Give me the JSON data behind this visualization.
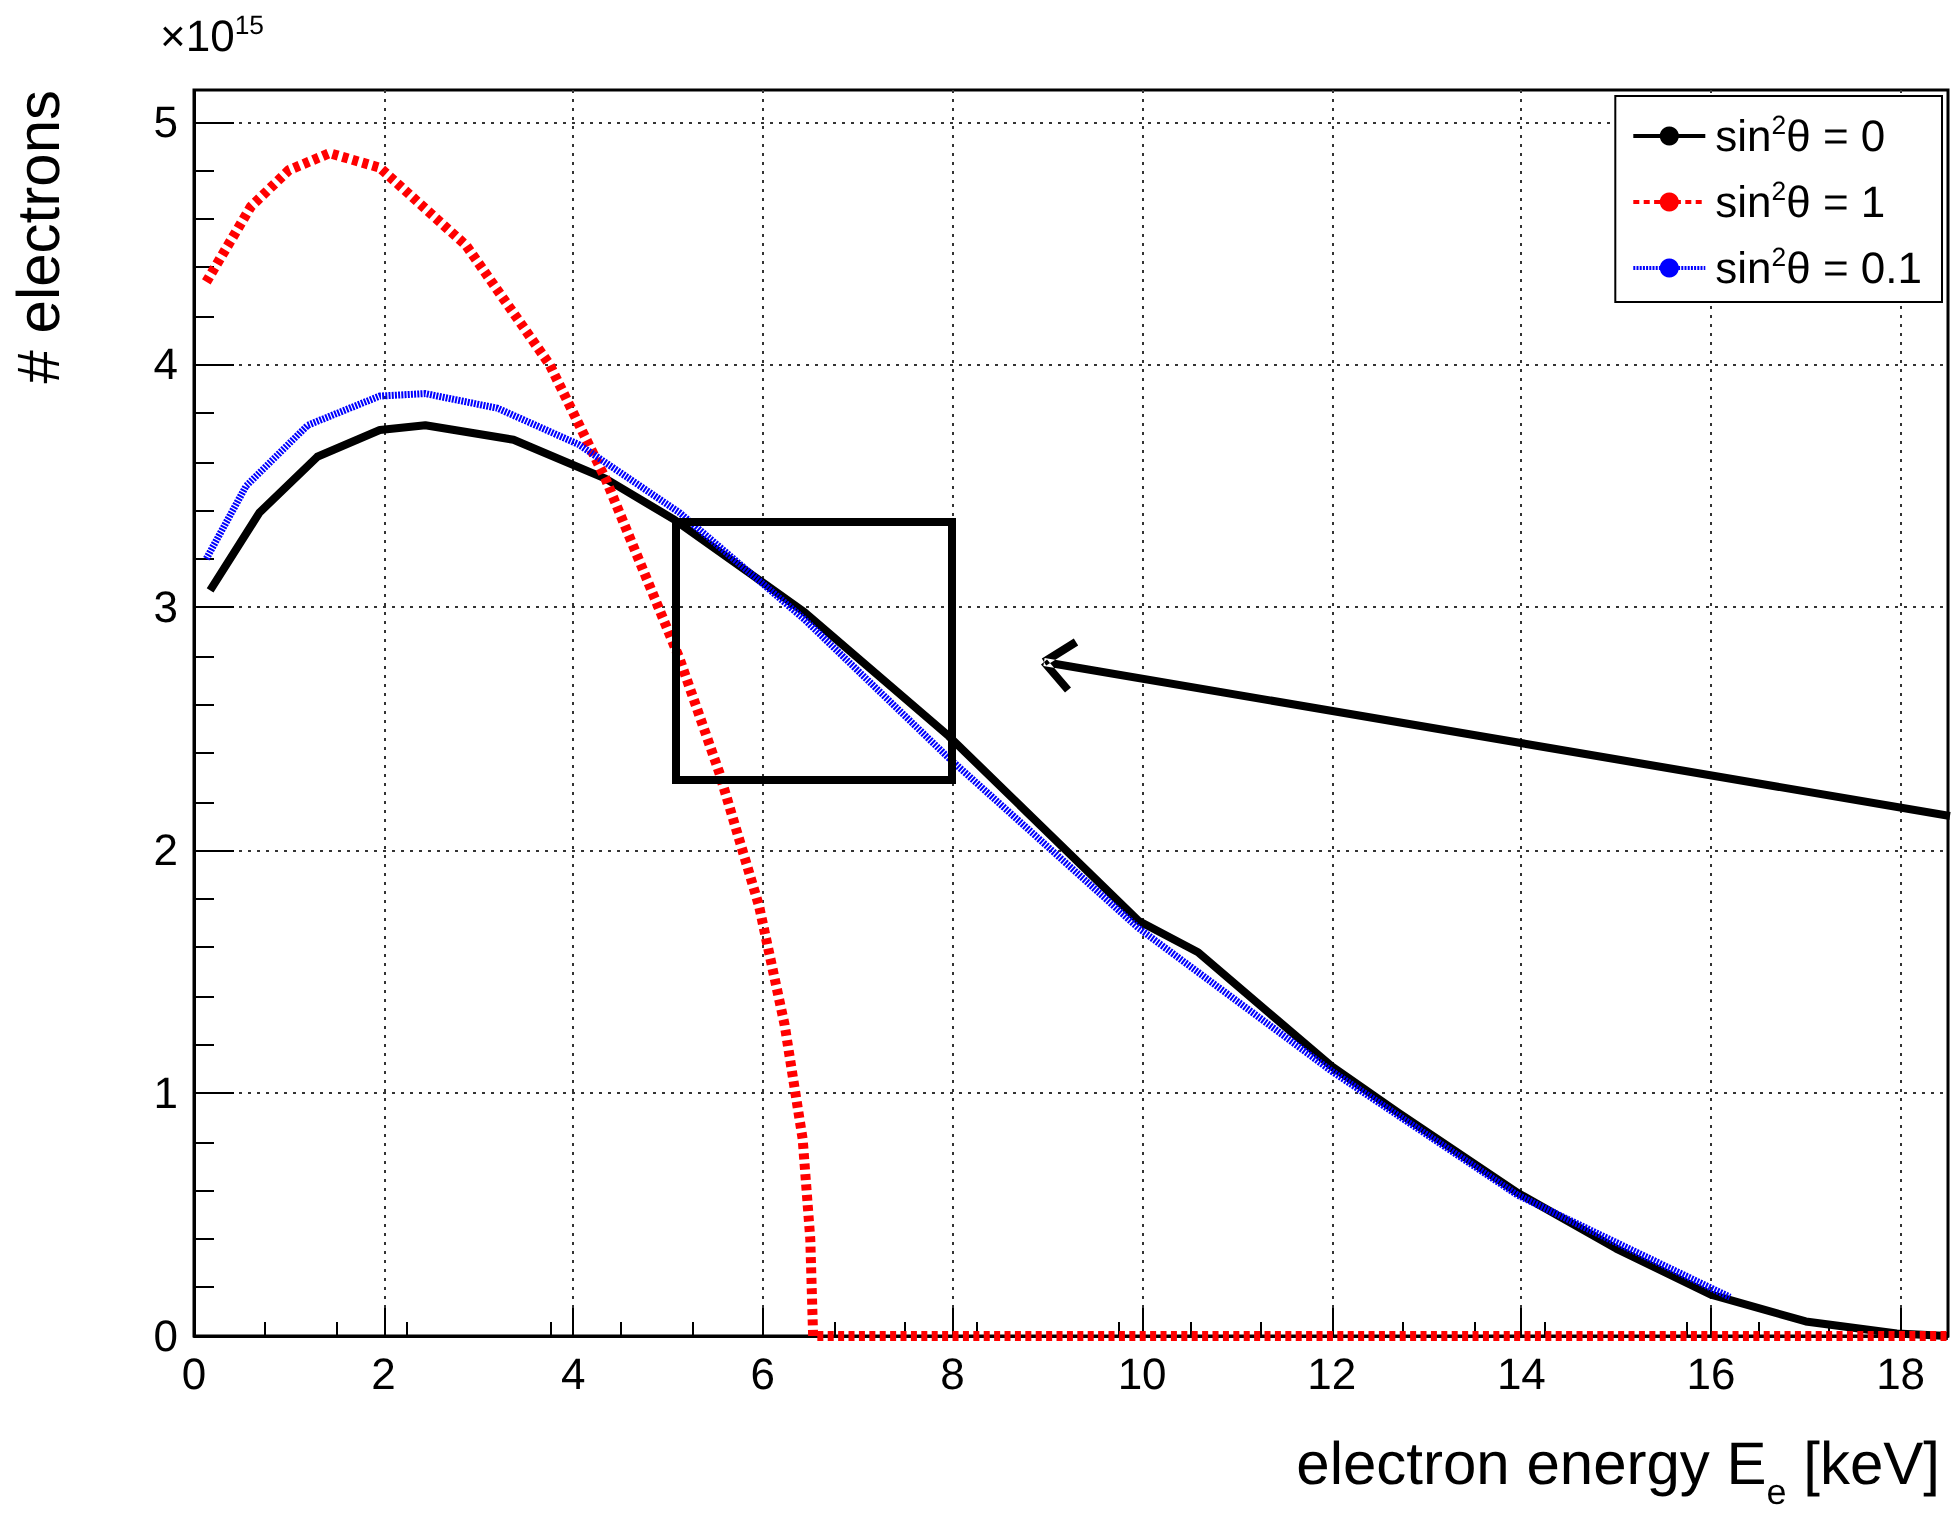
{
  "chart_data": {
    "type": "line",
    "xlabel": "electron energy E$_{e}$ [keV]",
    "ylabel": "# electrons",
    "annotations": [
      "×10$^{15}$"
    ],
    "xlim": [
      0,
      18.5
    ],
    "xticks": [
      0,
      2,
      4,
      6,
      8,
      10,
      12,
      14,
      16,
      18
    ],
    "ylim": [
      0,
      5.13
    ],
    "yticks": [
      0,
      1,
      2,
      3,
      4,
      5
    ],
    "grid": true,
    "legend": "top right",
    "series": [
      {
        "name": "sin$^{2}$θ = 0",
        "color": "#000000",
        "line_style": "solid",
        "x": [
          0.17,
          0.69,
          1.3,
          1.96,
          2.44,
          3.37,
          4.34,
          5.07,
          6.44,
          7.96,
          9.96,
          10.59,
          12.0,
          12.7,
          13.96,
          15.0,
          16.0,
          17.0,
          17.96,
          18.5
        ],
        "values": [
          3.07,
          3.39,
          3.62,
          3.73,
          3.75,
          3.69,
          3.53,
          3.36,
          2.98,
          2.47,
          1.71,
          1.58,
          1.11,
          0.92,
          0.59,
          0.36,
          0.17,
          0.06,
          0.01,
          0
        ]
      },
      {
        "name": "sin$^{2}$θ = 1",
        "color": "#ff0000",
        "line_style": "dashed",
        "x": [
          0.13,
          0.6,
          1.0,
          1.43,
          1.96,
          2.87,
          3.75,
          4.34,
          5.12,
          5.54,
          5.96,
          6.23,
          6.42,
          6.5,
          6.53,
          10,
          14,
          18.5
        ],
        "values": [
          4.34,
          4.65,
          4.8,
          4.87,
          4.81,
          4.49,
          4.0,
          3.53,
          2.79,
          2.32,
          1.77,
          1.28,
          0.81,
          0.4,
          0,
          0,
          0,
          0
        ]
      },
      {
        "name": "sin$^{2}$θ = 0.1",
        "color": "#0000ff",
        "line_style": "dotted",
        "x": [
          0.13,
          0.55,
          1.2,
          1.96,
          2.44,
          3.2,
          4.06,
          5.12,
          6.44,
          7.96,
          9.96,
          12.0,
          13.96,
          16.2
        ],
        "values": [
          3.2,
          3.5,
          3.75,
          3.87,
          3.88,
          3.82,
          3.67,
          3.39,
          2.95,
          2.38,
          1.68,
          1.09,
          0.58,
          0.16
        ]
      }
    ]
  }
}
